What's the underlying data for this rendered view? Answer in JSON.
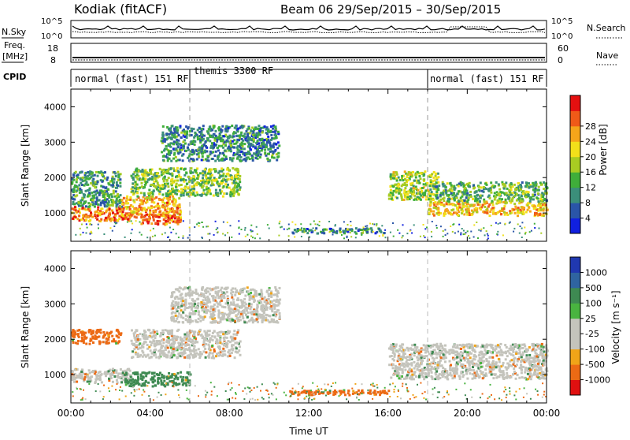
{
  "header": {
    "station": "Kodiak (fitACF)",
    "beam_range": "Beam 06  29/Sep/2015 – 30/Sep/2015"
  },
  "summary": {
    "nsky_label": "N.Sky",
    "nsky_ticks": [
      "10^5",
      "10^0"
    ],
    "nsearch_label": "N.Search",
    "nsearch_ticks": [
      "10^5",
      "10^0"
    ],
    "freq_label": "Freq.",
    "freq_unit": "[MHz]",
    "freq_ticks": [
      "18",
      "8"
    ],
    "nave_label": "Nave",
    "nave_ticks": [
      "60",
      "0"
    ],
    "cpid_label": "CPID",
    "cpid_segments": [
      {
        "label": "normal (fast) 151 RF",
        "start": 0,
        "end": 6
      },
      {
        "label": "themis 3300 RF",
        "start": 6,
        "end": 18
      },
      {
        "label": "normal (fast) 151 RF",
        "start": 18,
        "end": 24
      }
    ]
  },
  "chart_data": [
    {
      "type": "heatmap",
      "parameter": "Power",
      "ylabel": "Slant Range [km]",
      "xlim": [
        0,
        24
      ],
      "ylim": [
        200,
        4500
      ],
      "yticks": [
        "1000",
        "2000",
        "3000",
        "4000"
      ],
      "colorbar": {
        "label": "Power [dB]",
        "ticks": [
          "4",
          "8",
          "12",
          "16",
          "20",
          "24",
          "28"
        ],
        "colors": [
          "#1020e0",
          "#2a55a8",
          "#3b8f7a",
          "#3fae3a",
          "#a8cc22",
          "#f2e01a",
          "#f5a51a",
          "#ef5a18",
          "#e51010"
        ]
      },
      "echo_regions": [
        {
          "t0": 0.0,
          "t1": 3.0,
          "r0": 800,
          "r1": 1200,
          "power": 26
        },
        {
          "t0": 0.0,
          "t1": 2.5,
          "r0": 1200,
          "r1": 2200,
          "power": 10
        },
        {
          "t0": 2.5,
          "t1": 5.5,
          "r0": 900,
          "r1": 1500,
          "power": 24
        },
        {
          "t0": 3.5,
          "t1": 5.5,
          "r0": 700,
          "r1": 1000,
          "power": 28
        },
        {
          "t0": 3.0,
          "t1": 8.5,
          "r0": 1500,
          "r1": 2300,
          "power": 14
        },
        {
          "t0": 4.5,
          "t1": 10.5,
          "r0": 2500,
          "r1": 3500,
          "power": 8
        },
        {
          "t0": 11.0,
          "t1": 16.0,
          "r0": 450,
          "r1": 600,
          "power": 8
        },
        {
          "t0": 16.0,
          "t1": 18.5,
          "r0": 1400,
          "r1": 2200,
          "power": 16
        },
        {
          "t0": 18.0,
          "t1": 24.0,
          "r0": 950,
          "r1": 1350,
          "power": 22
        },
        {
          "t0": 18.0,
          "t1": 24.0,
          "r0": 1350,
          "r1": 1900,
          "power": 12
        }
      ]
    },
    {
      "type": "heatmap",
      "parameter": "Velocity",
      "ylabel": "Slant Range [km]",
      "xlabel": "Time UT",
      "xlim": [
        0,
        24
      ],
      "ylim": [
        200,
        4500
      ],
      "yticks": [
        "1000",
        "2000",
        "3000",
        "4000"
      ],
      "xticks": [
        "00:00",
        "04:00",
        "08:00",
        "12:00",
        "16:00",
        "20:00",
        "00:00"
      ],
      "colorbar": {
        "label": "Velocity [m s⁻¹]",
        "ticks": [
          "1000",
          "500",
          "100",
          "25",
          "-25",
          "-100",
          "-500",
          "-1000"
        ],
        "colors": [
          "#2038b0",
          "#2f64a0",
          "#3e8a52",
          "#49b440",
          "#c4c4bc",
          "#c4c4bc",
          "#f0a418",
          "#ec6a14",
          "#e01010"
        ]
      },
      "echo_regions": [
        {
          "t0": 0.0,
          "t1": 3.0,
          "r0": 800,
          "r1": 1200,
          "velocity": 0
        },
        {
          "t0": 0.0,
          "t1": 2.5,
          "r0": 1900,
          "r1": 2300,
          "velocity": -150
        },
        {
          "t0": 2.5,
          "t1": 6.0,
          "r0": 700,
          "r1": 1100,
          "velocity": 200
        },
        {
          "t0": 3.0,
          "t1": 8.5,
          "r0": 1500,
          "r1": 2300,
          "velocity": 0
        },
        {
          "t0": 5.0,
          "t1": 10.5,
          "r0": 2500,
          "r1": 3500,
          "velocity": 0
        },
        {
          "t0": 11.0,
          "t1": 16.0,
          "r0": 450,
          "r1": 600,
          "velocity": -150
        },
        {
          "t0": 16.0,
          "t1": 24.0,
          "r0": 900,
          "r1": 1900,
          "velocity": 0
        }
      ]
    }
  ]
}
